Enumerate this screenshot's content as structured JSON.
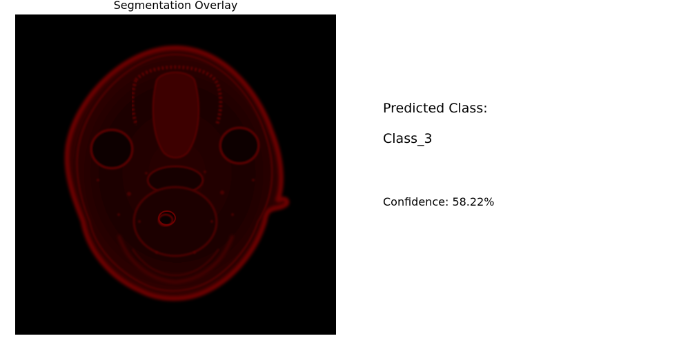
{
  "overlay": {
    "title": "Segmentation Overlay",
    "tint_color": "#8b0000",
    "background_color": "#000000"
  },
  "prediction": {
    "heading": "Predicted Class:",
    "class_name": "Class_3",
    "confidence_text": "Confidence: 58.22%"
  }
}
